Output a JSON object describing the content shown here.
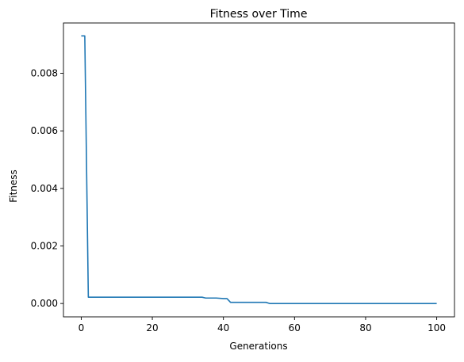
{
  "chart_data": {
    "type": "line",
    "title": "Fitness over Time",
    "xlabel": "Generations",
    "ylabel": "Fitness",
    "xlim": [
      -5,
      105
    ],
    "ylim": [
      -0.000464,
      0.00975
    ],
    "xticks": [
      0,
      20,
      40,
      60,
      80,
      100
    ],
    "xtick_labels": [
      "0",
      "20",
      "40",
      "60",
      "80",
      "100"
    ],
    "yticks": [
      0.0,
      0.002,
      0.004,
      0.006,
      0.008
    ],
    "ytick_labels": [
      "0.000",
      "0.002",
      "0.004",
      "0.006",
      "0.008"
    ],
    "grid": false,
    "legend": "none",
    "series": [
      {
        "color": "#1f77b4",
        "x": [
          0,
          1,
          2,
          3,
          10,
          20,
          30,
          34,
          35,
          38,
          40,
          41,
          42,
          45,
          50,
          52,
          53,
          60,
          70,
          80,
          90,
          100
        ],
        "y": [
          0.0093,
          0.0093,
          0.00022,
          0.00022,
          0.00022,
          0.00022,
          0.00022,
          0.00022,
          0.00019,
          0.00019,
          0.00017,
          0.00017,
          4e-05,
          4e-05,
          4e-05,
          4e-05,
          0.0,
          0.0,
          0.0,
          0.0,
          0.0,
          0.0
        ]
      }
    ]
  }
}
